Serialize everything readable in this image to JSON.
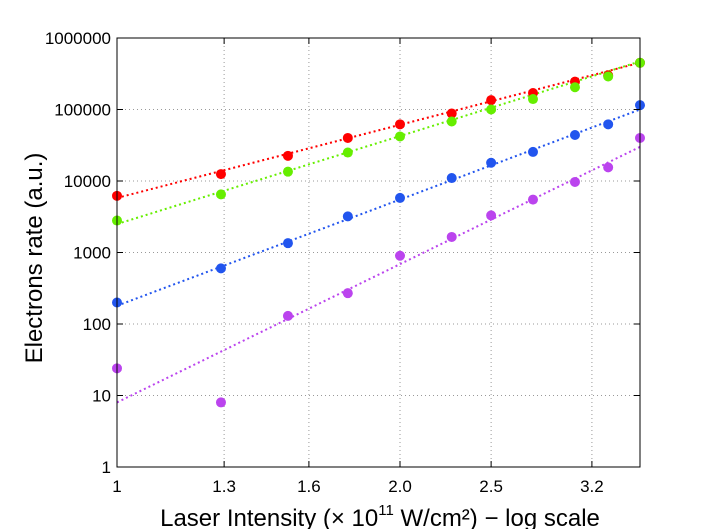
{
  "chart_data": {
    "type": "scatter",
    "xlabel": {
      "prefix": "Laser Intensity (",
      "times": "× 10",
      "exponent": "11",
      "suffix": " W/cm²) − log scale"
    },
    "ylabel": "Electrons rate (a.u.)",
    "x_scale": "log",
    "y_scale": "log",
    "xlim": [
      1.0,
      3.6
    ],
    "ylim": [
      1,
      1000000
    ],
    "x_ticks": [
      1.0,
      1.3,
      1.6,
      2.0,
      2.5,
      3.2
    ],
    "x_tick_labels": [
      "1",
      "1.3",
      "1.6",
      "2.0",
      "2.5",
      "3.2"
    ],
    "y_ticks": [
      1,
      10,
      100,
      1000,
      10000,
      100000,
      1000000
    ],
    "y_tick_labels": [
      "1",
      "10",
      "100",
      "1000",
      "10000",
      "100000",
      "1000000"
    ],
    "grid": true,
    "x": [
      1.0,
      1.29,
      1.52,
      1.76,
      2.0,
      2.27,
      2.5,
      2.77,
      3.07,
      3.33,
      3.6
    ],
    "series": [
      {
        "color": "#ff0000",
        "values": [
          6200,
          12500,
          22500,
          40000,
          62000,
          88000,
          135000,
          170000,
          245000,
          300000,
          450000
        ],
        "fit": [
          5800,
          450000
        ]
      },
      {
        "color": "#66ee00",
        "values": [
          2800,
          6500,
          13500,
          25000,
          42000,
          68000,
          100000,
          140000,
          205000,
          290000,
          450000
        ],
        "fit": [
          2500,
          470000
        ]
      },
      {
        "color": "#2255ee",
        "values": [
          200,
          600,
          1350,
          3200,
          5800,
          11000,
          18000,
          25500,
          44000,
          62000,
          115000
        ],
        "fit": [
          180,
          100000
        ]
      },
      {
        "color": "#bb44ee",
        "values": [
          24,
          8,
          130,
          270,
          900,
          1650,
          3300,
          5500,
          9700,
          15500,
          40000
        ],
        "fit": [
          8,
          30000
        ]
      }
    ]
  }
}
